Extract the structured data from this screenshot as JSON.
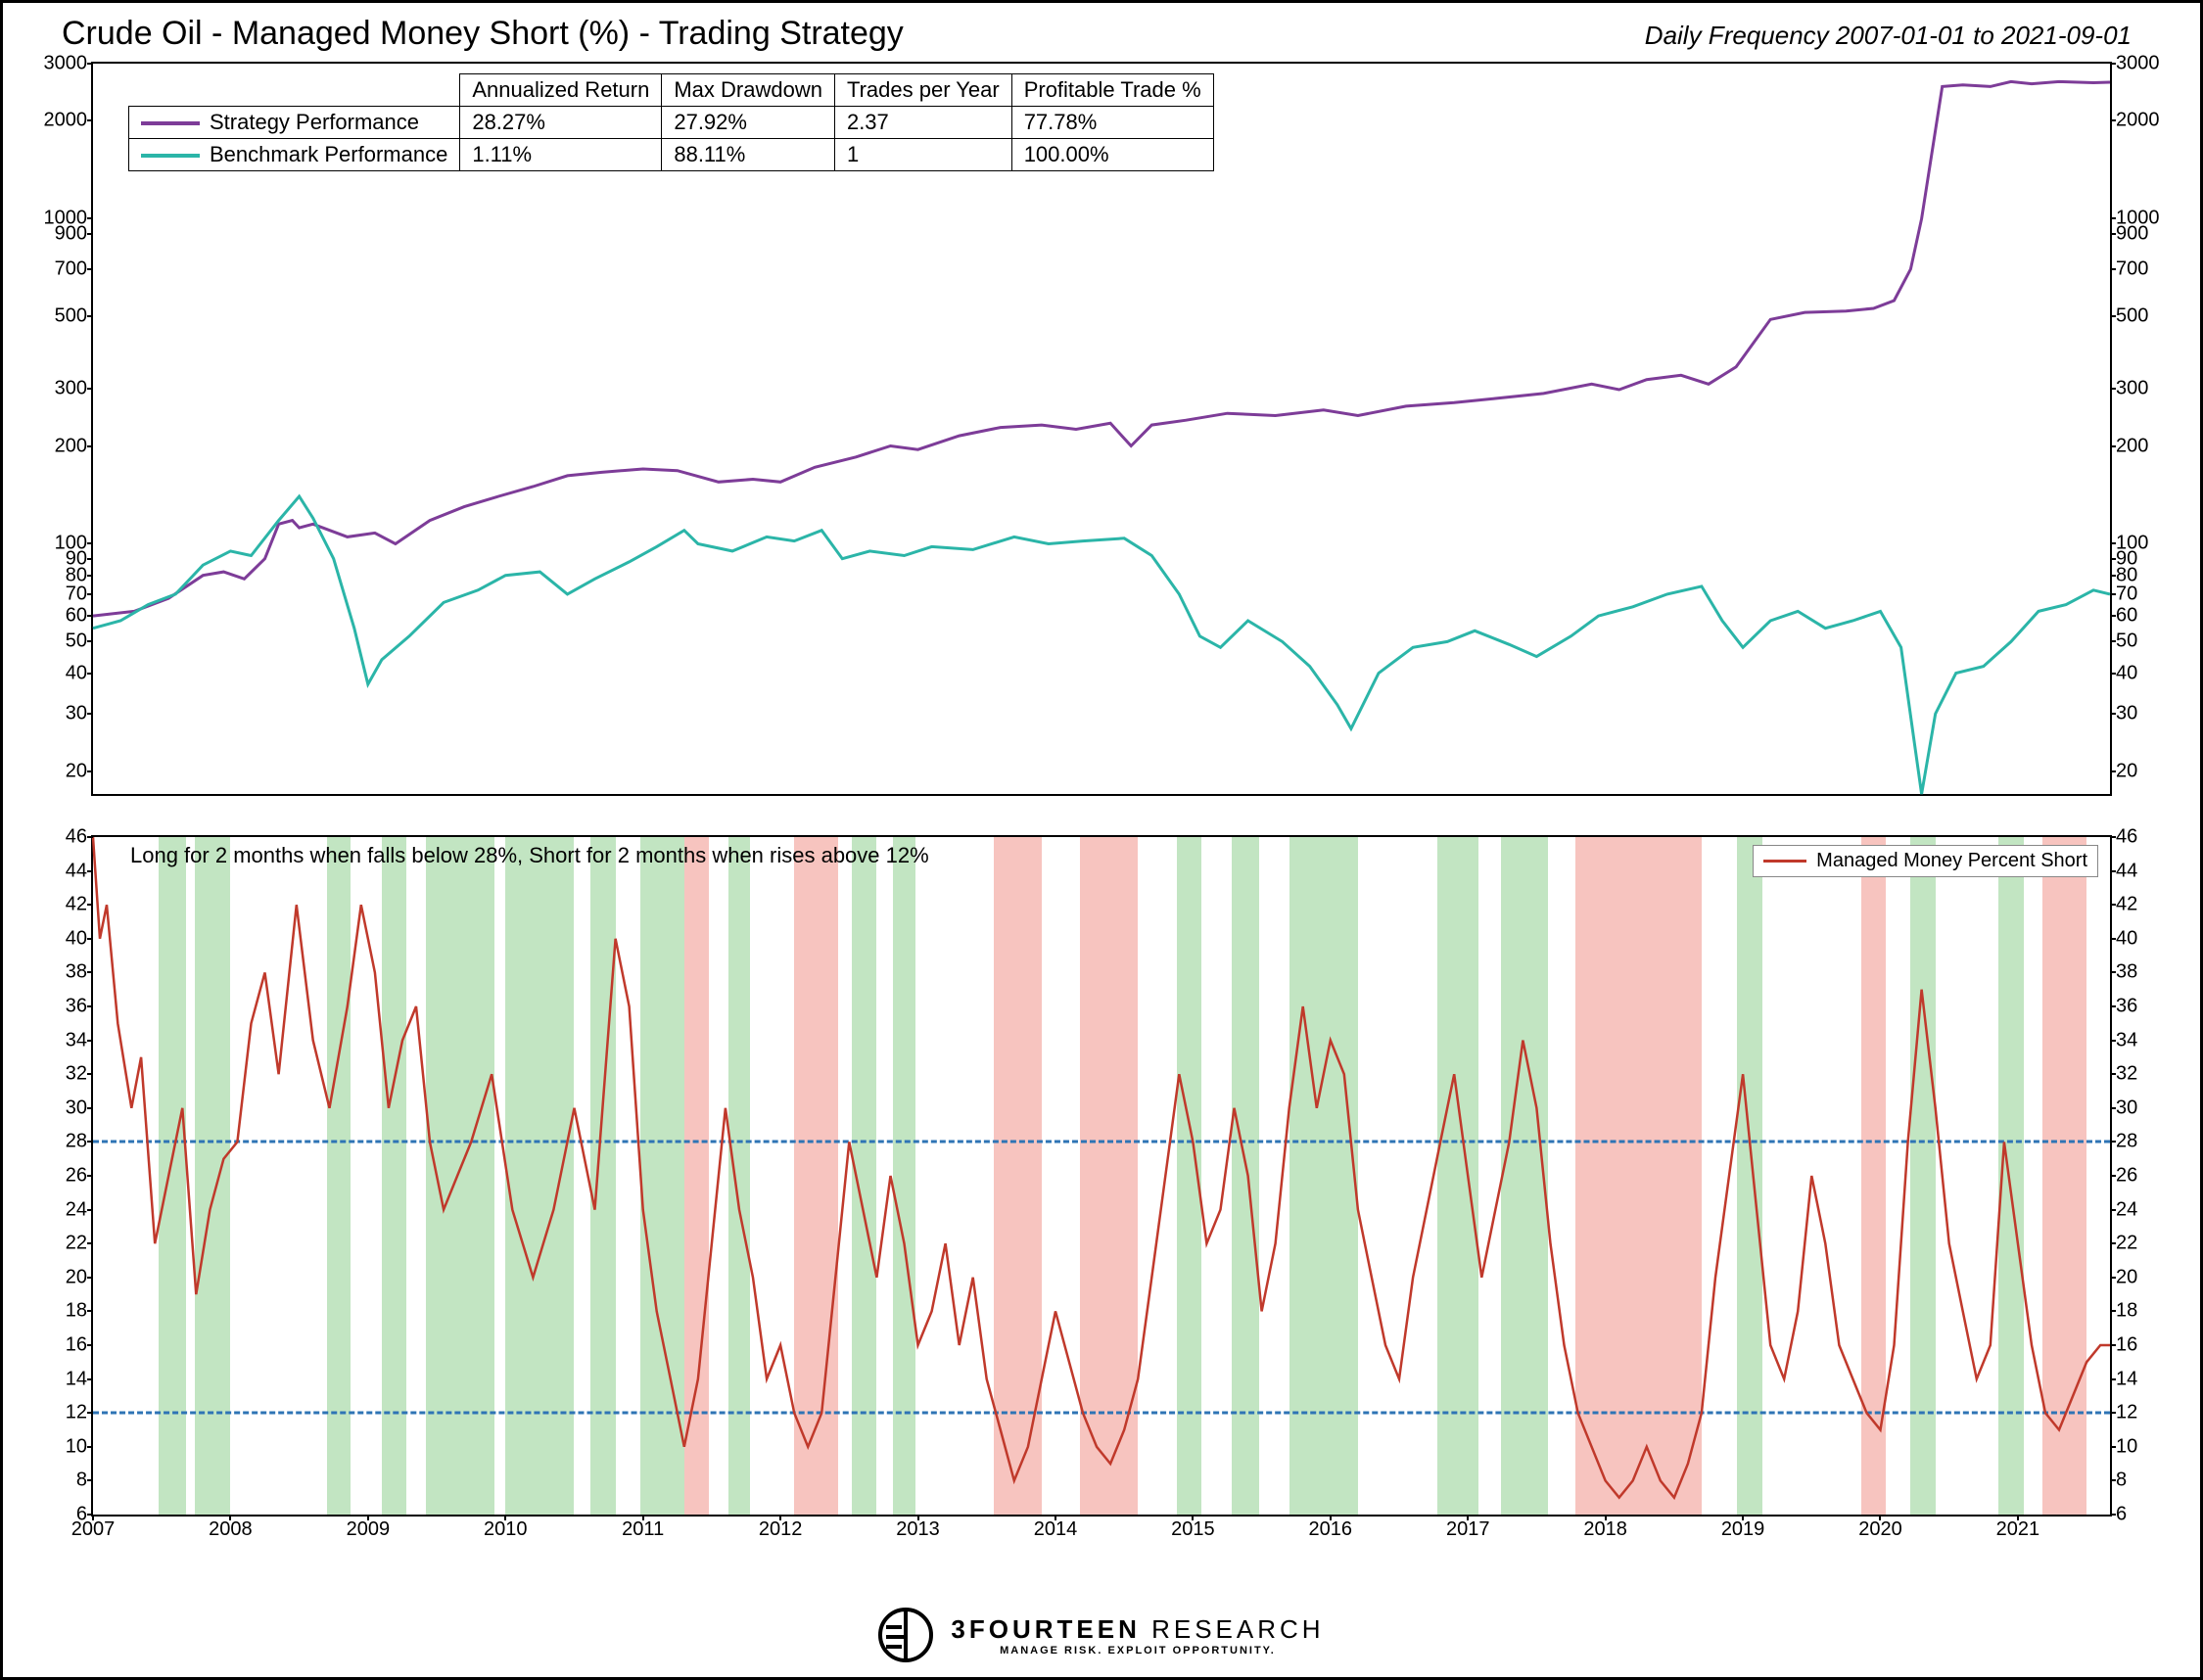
{
  "header": {
    "title": "Crude Oil - Managed Money Short (%) - Trading Strategy",
    "subtitle": "Daily Frequency 2007-01-01 to 2021-09-01"
  },
  "x_axis": {
    "domain": [
      2007,
      2021.67
    ],
    "year_ticks": [
      2007,
      2008,
      2009,
      2010,
      2011,
      2012,
      2013,
      2014,
      2015,
      2016,
      2017,
      2018,
      2019,
      2020,
      2021
    ],
    "tick_fontsize": 20
  },
  "perf_table": {
    "columns": [
      "Annualized Return",
      "Max Drawdown",
      "Trades per Year",
      "Profitable Trade %"
    ],
    "rows": [
      {
        "label": "Strategy Performance",
        "color": "#7d3c98",
        "values": [
          "28.27%",
          "27.92%",
          "2.37",
          "77.78%"
        ]
      },
      {
        "label": "Benchmark Performance",
        "color": "#2bb5a8",
        "values": [
          "1.11%",
          "88.11%",
          "1",
          "100.00%"
        ]
      }
    ],
    "fontsize": 22
  },
  "top_chart": {
    "type": "line",
    "yscale": "log",
    "ylim": [
      17,
      3000
    ],
    "yticks_major": [
      20,
      30,
      40,
      50,
      60,
      70,
      80,
      90,
      100,
      200,
      300,
      500,
      700,
      900,
      1000,
      2000,
      3000
    ],
    "ytick_fontsize": 20,
    "line_width": 3,
    "series": {
      "strategy": {
        "color": "#7d3c98",
        "points": [
          [
            2007.0,
            60
          ],
          [
            2007.3,
            62
          ],
          [
            2007.55,
            68
          ],
          [
            2007.8,
            80
          ],
          [
            2007.95,
            82
          ],
          [
            2008.1,
            78
          ],
          [
            2008.25,
            90
          ],
          [
            2008.35,
            115
          ],
          [
            2008.45,
            118
          ],
          [
            2008.5,
            112
          ],
          [
            2008.6,
            115
          ],
          [
            2008.85,
            105
          ],
          [
            2009.05,
            108
          ],
          [
            2009.2,
            100
          ],
          [
            2009.45,
            118
          ],
          [
            2009.7,
            130
          ],
          [
            2009.95,
            140
          ],
          [
            2010.2,
            150
          ],
          [
            2010.45,
            162
          ],
          [
            2010.7,
            166
          ],
          [
            2011.0,
            170
          ],
          [
            2011.25,
            168
          ],
          [
            2011.55,
            155
          ],
          [
            2011.8,
            158
          ],
          [
            2012.0,
            155
          ],
          [
            2012.25,
            172
          ],
          [
            2012.55,
            185
          ],
          [
            2012.8,
            200
          ],
          [
            2013.0,
            195
          ],
          [
            2013.3,
            215
          ],
          [
            2013.6,
            228
          ],
          [
            2013.9,
            232
          ],
          [
            2014.15,
            225
          ],
          [
            2014.4,
            235
          ],
          [
            2014.55,
            200
          ],
          [
            2014.7,
            232
          ],
          [
            2014.95,
            240
          ],
          [
            2015.25,
            252
          ],
          [
            2015.6,
            248
          ],
          [
            2015.95,
            258
          ],
          [
            2016.2,
            248
          ],
          [
            2016.55,
            265
          ],
          [
            2016.9,
            272
          ],
          [
            2017.2,
            280
          ],
          [
            2017.55,
            290
          ],
          [
            2017.9,
            310
          ],
          [
            2018.1,
            298
          ],
          [
            2018.3,
            320
          ],
          [
            2018.55,
            330
          ],
          [
            2018.75,
            310
          ],
          [
            2018.95,
            350
          ],
          [
            2019.2,
            490
          ],
          [
            2019.45,
            515
          ],
          [
            2019.75,
            520
          ],
          [
            2019.95,
            530
          ],
          [
            2020.1,
            560
          ],
          [
            2020.22,
            700
          ],
          [
            2020.3,
            1000
          ],
          [
            2020.45,
            2550
          ],
          [
            2020.6,
            2580
          ],
          [
            2020.8,
            2550
          ],
          [
            2020.95,
            2640
          ],
          [
            2021.1,
            2600
          ],
          [
            2021.3,
            2640
          ],
          [
            2021.55,
            2620
          ],
          [
            2021.67,
            2630
          ]
        ]
      },
      "benchmark": {
        "color": "#2bb5a8",
        "points": [
          [
            2007.0,
            55
          ],
          [
            2007.2,
            58
          ],
          [
            2007.4,
            65
          ],
          [
            2007.6,
            70
          ],
          [
            2007.8,
            86
          ],
          [
            2008.0,
            95
          ],
          [
            2008.15,
            92
          ],
          [
            2008.35,
            118
          ],
          [
            2008.5,
            140
          ],
          [
            2008.6,
            120
          ],
          [
            2008.75,
            90
          ],
          [
            2008.9,
            55
          ],
          [
            2009.0,
            37
          ],
          [
            2009.1,
            44
          ],
          [
            2009.3,
            52
          ],
          [
            2009.55,
            66
          ],
          [
            2009.8,
            72
          ],
          [
            2010.0,
            80
          ],
          [
            2010.25,
            82
          ],
          [
            2010.45,
            70
          ],
          [
            2010.65,
            78
          ],
          [
            2010.9,
            88
          ],
          [
            2011.1,
            98
          ],
          [
            2011.3,
            110
          ],
          [
            2011.4,
            100
          ],
          [
            2011.65,
            95
          ],
          [
            2011.9,
            105
          ],
          [
            2012.1,
            102
          ],
          [
            2012.3,
            110
          ],
          [
            2012.45,
            90
          ],
          [
            2012.65,
            95
          ],
          [
            2012.9,
            92
          ],
          [
            2013.1,
            98
          ],
          [
            2013.4,
            96
          ],
          [
            2013.7,
            105
          ],
          [
            2013.95,
            100
          ],
          [
            2014.2,
            102
          ],
          [
            2014.5,
            104
          ],
          [
            2014.7,
            92
          ],
          [
            2014.9,
            70
          ],
          [
            2015.05,
            52
          ],
          [
            2015.2,
            48
          ],
          [
            2015.4,
            58
          ],
          [
            2015.65,
            50
          ],
          [
            2015.85,
            42
          ],
          [
            2016.05,
            32
          ],
          [
            2016.15,
            27
          ],
          [
            2016.35,
            40
          ],
          [
            2016.6,
            48
          ],
          [
            2016.85,
            50
          ],
          [
            2017.05,
            54
          ],
          [
            2017.3,
            49
          ],
          [
            2017.5,
            45
          ],
          [
            2017.75,
            52
          ],
          [
            2017.95,
            60
          ],
          [
            2018.2,
            64
          ],
          [
            2018.45,
            70
          ],
          [
            2018.7,
            74
          ],
          [
            2018.85,
            58
          ],
          [
            2019.0,
            48
          ],
          [
            2019.2,
            58
          ],
          [
            2019.4,
            62
          ],
          [
            2019.6,
            55
          ],
          [
            2019.8,
            58
          ],
          [
            2020.0,
            62
          ],
          [
            2020.15,
            48
          ],
          [
            2020.25,
            24
          ],
          [
            2020.3,
            17
          ],
          [
            2020.4,
            30
          ],
          [
            2020.55,
            40
          ],
          [
            2020.75,
            42
          ],
          [
            2020.95,
            50
          ],
          [
            2021.15,
            62
          ],
          [
            2021.35,
            65
          ],
          [
            2021.55,
            72
          ],
          [
            2021.67,
            70
          ]
        ]
      }
    }
  },
  "bottom_chart": {
    "type": "line",
    "note": "Long for 2 months when falls below 28%, Short for 2 months when rises above 12%",
    "legend_label": "Managed Money Percent Short",
    "ylim": [
      6,
      46
    ],
    "ytick_step": 2,
    "ytick_fontsize": 20,
    "line_color": "#c0392b",
    "line_width": 2.5,
    "threshold_high": 28,
    "threshold_low": 12,
    "threshold_color": "#2e74b5",
    "band_colors": {
      "long": "#8fcf8f",
      "short": "#f1948a",
      "opacity": 0.55
    },
    "series": [
      [
        2007.0,
        46
      ],
      [
        2007.05,
        40
      ],
      [
        2007.1,
        42
      ],
      [
        2007.18,
        35
      ],
      [
        2007.28,
        30
      ],
      [
        2007.35,
        33
      ],
      [
        2007.45,
        22
      ],
      [
        2007.55,
        26
      ],
      [
        2007.65,
        30
      ],
      [
        2007.75,
        19
      ],
      [
        2007.85,
        24
      ],
      [
        2007.95,
        27
      ],
      [
        2008.05,
        28
      ],
      [
        2008.15,
        35
      ],
      [
        2008.25,
        38
      ],
      [
        2008.35,
        32
      ],
      [
        2008.48,
        42
      ],
      [
        2008.6,
        34
      ],
      [
        2008.72,
        30
      ],
      [
        2008.85,
        36
      ],
      [
        2008.95,
        42
      ],
      [
        2009.05,
        38
      ],
      [
        2009.15,
        30
      ],
      [
        2009.25,
        34
      ],
      [
        2009.35,
        36
      ],
      [
        2009.45,
        28
      ],
      [
        2009.55,
        24
      ],
      [
        2009.65,
        26
      ],
      [
        2009.75,
        28
      ],
      [
        2009.9,
        32
      ],
      [
        2010.05,
        24
      ],
      [
        2010.2,
        20
      ],
      [
        2010.35,
        24
      ],
      [
        2010.5,
        30
      ],
      [
        2010.65,
        24
      ],
      [
        2010.8,
        40
      ],
      [
        2010.9,
        36
      ],
      [
        2011.0,
        24
      ],
      [
        2011.1,
        18
      ],
      [
        2011.2,
        14
      ],
      [
        2011.3,
        10
      ],
      [
        2011.4,
        14
      ],
      [
        2011.5,
        22
      ],
      [
        2011.6,
        30
      ],
      [
        2011.7,
        24
      ],
      [
        2011.8,
        20
      ],
      [
        2011.9,
        14
      ],
      [
        2012.0,
        16
      ],
      [
        2012.1,
        12
      ],
      [
        2012.2,
        10
      ],
      [
        2012.3,
        12
      ],
      [
        2012.4,
        20
      ],
      [
        2012.5,
        28
      ],
      [
        2012.6,
        24
      ],
      [
        2012.7,
        20
      ],
      [
        2012.8,
        26
      ],
      [
        2012.9,
        22
      ],
      [
        2013.0,
        16
      ],
      [
        2013.1,
        18
      ],
      [
        2013.2,
        22
      ],
      [
        2013.3,
        16
      ],
      [
        2013.4,
        20
      ],
      [
        2013.5,
        14
      ],
      [
        2013.6,
        11
      ],
      [
        2013.7,
        8
      ],
      [
        2013.8,
        10
      ],
      [
        2013.9,
        14
      ],
      [
        2014.0,
        18
      ],
      [
        2014.1,
        15
      ],
      [
        2014.2,
        12
      ],
      [
        2014.3,
        10
      ],
      [
        2014.4,
        9
      ],
      [
        2014.5,
        11
      ],
      [
        2014.6,
        14
      ],
      [
        2014.7,
        20
      ],
      [
        2014.8,
        26
      ],
      [
        2014.9,
        32
      ],
      [
        2015.0,
        28
      ],
      [
        2015.1,
        22
      ],
      [
        2015.2,
        24
      ],
      [
        2015.3,
        30
      ],
      [
        2015.4,
        26
      ],
      [
        2015.5,
        18
      ],
      [
        2015.6,
        22
      ],
      [
        2015.7,
        30
      ],
      [
        2015.8,
        36
      ],
      [
        2015.9,
        30
      ],
      [
        2016.0,
        34
      ],
      [
        2016.1,
        32
      ],
      [
        2016.2,
        24
      ],
      [
        2016.3,
        20
      ],
      [
        2016.4,
        16
      ],
      [
        2016.5,
        14
      ],
      [
        2016.6,
        20
      ],
      [
        2016.7,
        24
      ],
      [
        2016.8,
        28
      ],
      [
        2016.9,
        32
      ],
      [
        2017.0,
        26
      ],
      [
        2017.1,
        20
      ],
      [
        2017.2,
        24
      ],
      [
        2017.3,
        28
      ],
      [
        2017.4,
        34
      ],
      [
        2017.5,
        30
      ],
      [
        2017.6,
        22
      ],
      [
        2017.7,
        16
      ],
      [
        2017.8,
        12
      ],
      [
        2017.9,
        10
      ],
      [
        2018.0,
        8
      ],
      [
        2018.1,
        7
      ],
      [
        2018.2,
        8
      ],
      [
        2018.3,
        10
      ],
      [
        2018.4,
        8
      ],
      [
        2018.5,
        7
      ],
      [
        2018.6,
        9
      ],
      [
        2018.7,
        12
      ],
      [
        2018.8,
        20
      ],
      [
        2018.9,
        26
      ],
      [
        2019.0,
        32
      ],
      [
        2019.1,
        24
      ],
      [
        2019.2,
        16
      ],
      [
        2019.3,
        14
      ],
      [
        2019.4,
        18
      ],
      [
        2019.5,
        26
      ],
      [
        2019.6,
        22
      ],
      [
        2019.7,
        16
      ],
      [
        2019.8,
        14
      ],
      [
        2019.9,
        12
      ],
      [
        2020.0,
        11
      ],
      [
        2020.1,
        16
      ],
      [
        2020.2,
        28
      ],
      [
        2020.3,
        37
      ],
      [
        2020.4,
        30
      ],
      [
        2020.5,
        22
      ],
      [
        2020.6,
        18
      ],
      [
        2020.7,
        14
      ],
      [
        2020.8,
        16
      ],
      [
        2020.9,
        28
      ],
      [
        2021.0,
        22
      ],
      [
        2021.1,
        16
      ],
      [
        2021.2,
        12
      ],
      [
        2021.3,
        11
      ],
      [
        2021.4,
        13
      ],
      [
        2021.5,
        15
      ],
      [
        2021.6,
        16
      ],
      [
        2021.67,
        16
      ]
    ],
    "bands": [
      {
        "type": "long",
        "from": 2007.48,
        "to": 2007.68
      },
      {
        "type": "long",
        "from": 2007.74,
        "to": 2008.0
      },
      {
        "type": "long",
        "from": 2008.7,
        "to": 2008.87
      },
      {
        "type": "long",
        "from": 2009.1,
        "to": 2009.28
      },
      {
        "type": "long",
        "from": 2009.42,
        "to": 2009.92
      },
      {
        "type": "long",
        "from": 2010.0,
        "to": 2010.5
      },
      {
        "type": "long",
        "from": 2010.62,
        "to": 2010.8
      },
      {
        "type": "long",
        "from": 2010.98,
        "to": 2011.3
      },
      {
        "type": "short",
        "from": 2011.3,
        "to": 2011.48
      },
      {
        "type": "long",
        "from": 2011.62,
        "to": 2011.78
      },
      {
        "type": "short",
        "from": 2012.1,
        "to": 2012.42
      },
      {
        "type": "long",
        "from": 2012.52,
        "to": 2012.7
      },
      {
        "type": "long",
        "from": 2012.82,
        "to": 2012.98
      },
      {
        "type": "short",
        "from": 2013.55,
        "to": 2013.9
      },
      {
        "type": "short",
        "from": 2014.18,
        "to": 2014.6
      },
      {
        "type": "long",
        "from": 2014.88,
        "to": 2015.06
      },
      {
        "type": "long",
        "from": 2015.28,
        "to": 2015.48
      },
      {
        "type": "long",
        "from": 2015.7,
        "to": 2016.2
      },
      {
        "type": "long",
        "from": 2016.78,
        "to": 2017.08
      },
      {
        "type": "long",
        "from": 2017.24,
        "to": 2017.4
      },
      {
        "type": "long",
        "from": 2017.4,
        "to": 2017.58
      },
      {
        "type": "short",
        "from": 2017.78,
        "to": 2018.7
      },
      {
        "type": "long",
        "from": 2018.96,
        "to": 2019.14
      },
      {
        "type": "short",
        "from": 2019.86,
        "to": 2020.04
      },
      {
        "type": "long",
        "from": 2020.22,
        "to": 2020.4
      },
      {
        "type": "long",
        "from": 2020.86,
        "to": 2021.04
      },
      {
        "type": "short",
        "from": 2021.18,
        "to": 2021.5
      }
    ]
  },
  "footer": {
    "brand1": "3FOURTEEN",
    "brand2": " RESEARCH",
    "tagline": "MANAGE RISK. EXPLOIT OPPORTUNITY."
  },
  "colors": {
    "axis": "#000000",
    "background": "#ffffff"
  }
}
